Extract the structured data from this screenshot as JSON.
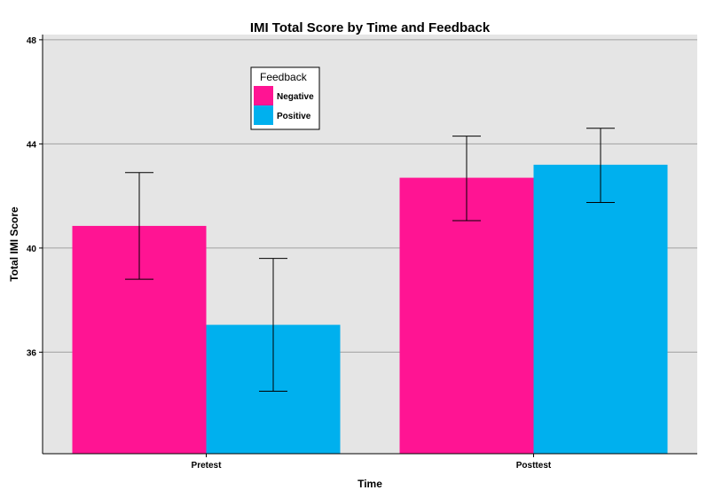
{
  "chart_data": {
    "type": "bar",
    "title": "IMI Total Score by Time and Feedback",
    "xlabel": "Time",
    "ylabel": "Total IMI Score",
    "categories": [
      "Pretest",
      "Posttest"
    ],
    "ylim": [
      32.1,
      48.2
    ],
    "yticks": [
      36,
      40,
      44,
      48
    ],
    "grid": true,
    "legend": {
      "title": "Feedback",
      "position": "top-center"
    },
    "series": [
      {
        "name": "Negative",
        "color": "#FF1493",
        "values": [
          40.85,
          42.7
        ],
        "error_low": [
          38.8,
          41.05
        ],
        "error_high": [
          42.9,
          44.3
        ]
      },
      {
        "name": "Positive",
        "color": "#00B0EE",
        "values": [
          37.05,
          43.2
        ],
        "error_low": [
          34.5,
          41.75
        ],
        "error_high": [
          39.6,
          44.6
        ]
      }
    ]
  }
}
